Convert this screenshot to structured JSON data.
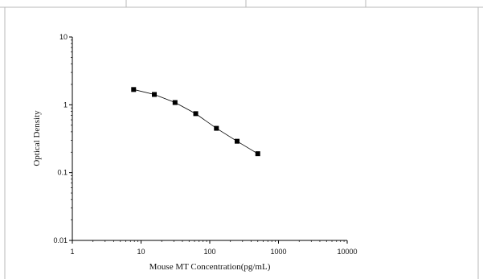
{
  "chart_data": {
    "type": "scatter",
    "xlabel": "Mouse MT Concentration(pg/mL)",
    "ylabel": "Optical Density",
    "x_scale": "log",
    "y_scale": "log",
    "xlim": [
      1,
      10000
    ],
    "ylim": [
      0.01,
      10
    ],
    "x_ticks": [
      "1",
      "10",
      "100",
      "1000",
      "10000"
    ],
    "y_ticks": [
      "10",
      "1",
      "0.1",
      "0.01"
    ],
    "grid": false,
    "series": [
      {
        "x": [
          7.8,
          15.6,
          31.25,
          62.5,
          125,
          250,
          500
        ],
        "y": [
          1.68,
          1.42,
          1.08,
          0.74,
          0.45,
          0.29,
          0.19
        ],
        "marker": "square",
        "line": "connected",
        "color": "#000000"
      }
    ]
  }
}
